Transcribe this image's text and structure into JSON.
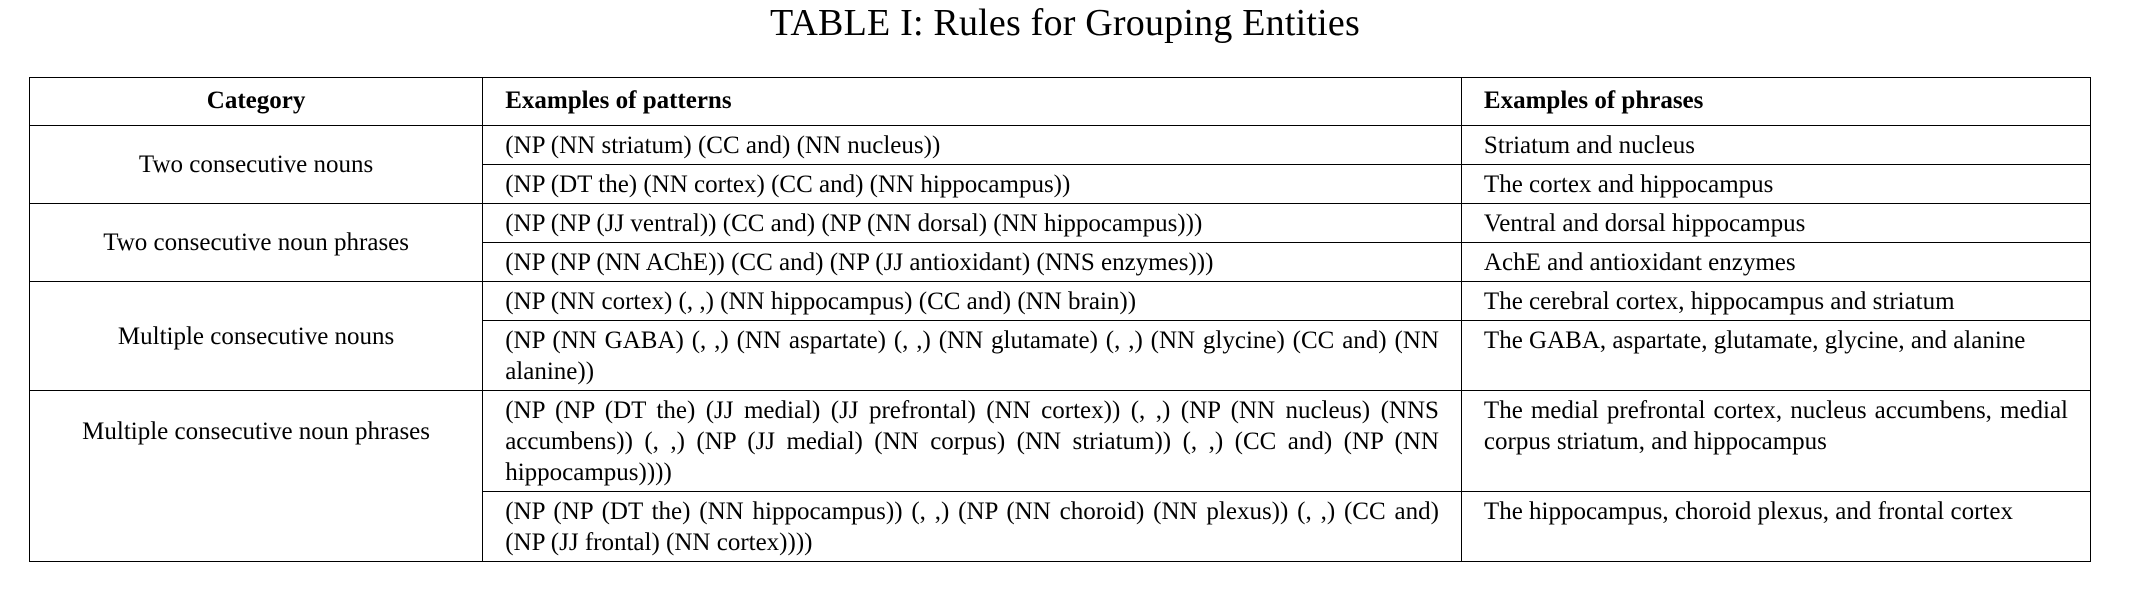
{
  "caption": "TABLE I: Rules for Grouping Entities",
  "headers": {
    "category": "Category",
    "patterns": "Examples of patterns",
    "phrases": "Examples of phrases"
  },
  "groups": [
    {
      "category": "Two consecutive nouns",
      "rows": [
        {
          "pattern": "(NP (NN striatum) (CC and) (NN nucleus))",
          "phrase": "Striatum and nucleus"
        },
        {
          "pattern": "(NP (DT the) (NN cortex) (CC and) (NN hippocampus))",
          "phrase": "The cortex and hippocampus"
        }
      ]
    },
    {
      "category": "Two consecutive noun phrases",
      "rows": [
        {
          "pattern": "(NP (NP (JJ ventral)) (CC and) (NP (NN dorsal) (NN hippocampus)))",
          "phrase": "Ventral and dorsal hippocampus"
        },
        {
          "pattern": "(NP (NP (NN AChE)) (CC and) (NP (JJ antioxidant) (NNS enzymes)))",
          "phrase": "AchE and antioxidant enzymes"
        }
      ]
    },
    {
      "category": "Multiple consecutive nouns",
      "rows": [
        {
          "pattern": "(NP (NN cortex) (, ,) (NN hippocampus) (CC and) (NN brain))",
          "phrase": "The cerebral cortex, hippocampus and striatum"
        },
        {
          "pattern": "(NP (NN GABA) (, ,) (NN aspartate) (, ,) (NN glutamate) (, ,) (NN glycine) (CC and) (NN alanine))",
          "phrase": "The GABA, aspartate, glutamate, glycine, and alanine"
        }
      ]
    },
    {
      "category": "Multiple consecutive noun phrases",
      "rows": [
        {
          "pattern": "(NP (NP (DT the) (JJ medial) (JJ prefrontal) (NN cortex)) (, ,) (NP (NN nucleus) (NNS accumbens)) (, ,) (NP (JJ medial) (NN corpus) (NN striatum)) (, ,) (CC and) (NP (NN hippocampus))))",
          "phrase": "The medial prefrontal cortex, nucleus accumbens, medial corpus striatum, and hippocampus"
        },
        {
          "pattern": "(NP (NP (DT the) (NN hippocampus)) (, ,) (NP (NN choroid) (NN plexus)) (, ,) (CC and) (NP (JJ frontal) (NN cortex))))",
          "phrase": "The hippocampus, choroid plexus, and frontal cortex"
        }
      ]
    }
  ]
}
